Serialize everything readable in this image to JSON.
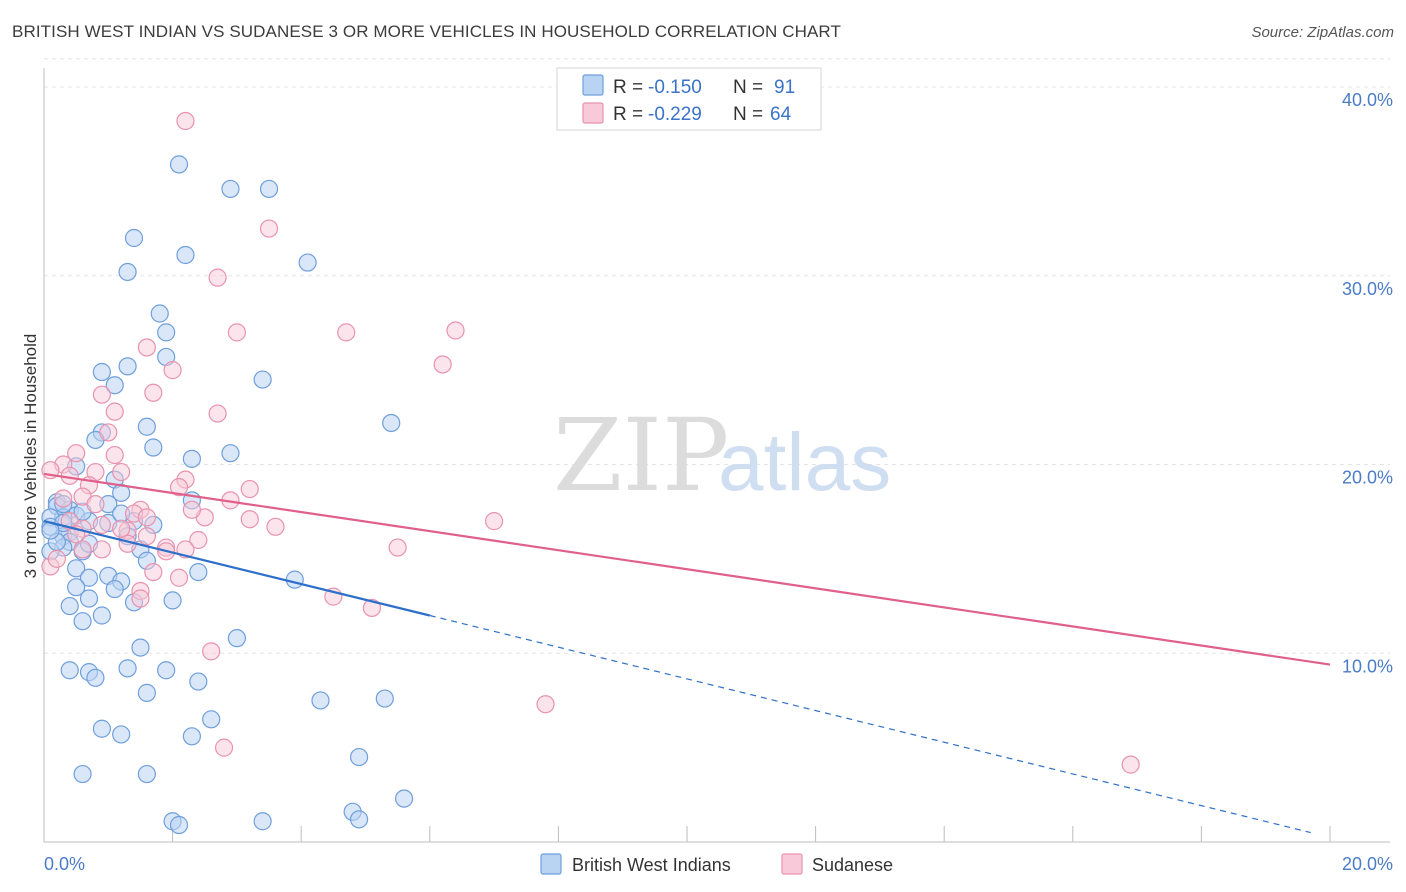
{
  "title": "BRITISH WEST INDIAN VS SUDANESE 3 OR MORE VEHICLES IN HOUSEHOLD CORRELATION CHART",
  "source": "Source: ZipAtlas.com",
  "watermark": {
    "zip": "ZIP",
    "atlas": "atlas"
  },
  "colors": {
    "blue_fill": "#b9d3f2",
    "blue_stroke": "#6f9fdc",
    "blue_line": "#2d6fc9",
    "pink_fill": "#f8c9d8",
    "pink_stroke": "#e893ae",
    "pink_line": "#e0608a",
    "grid": "#e4e4e4",
    "tick_label": "#4a7cc7"
  },
  "chart_data": {
    "type": "scatter",
    "ylabel": "3 or more Vehicles in Household",
    "xlim": [
      0,
      20
    ],
    "ylim": [
      0,
      40
    ],
    "x_tick_labels": [
      "0.0%",
      "20.0%"
    ],
    "y_ticks": [
      10,
      20,
      30,
      40
    ],
    "y_tick_labels": [
      "10.0%",
      "20.0%",
      "30.0%",
      "40.0%"
    ],
    "legend": [
      {
        "r_label": "R =",
        "r_value": "-0.150",
        "n_label": "N =",
        "n_value": "91"
      },
      {
        "r_label": "R =",
        "r_value": "-0.229",
        "n_label": "N =",
        "n_value": "64"
      }
    ],
    "series": [
      {
        "name": "British West Indians",
        "trend": {
          "x0": 0.0,
          "y0": 17.0,
          "x_solid_end": 6.0,
          "y_solid_end": 12.0,
          "x_dash_end": 19.7,
          "y_dash_end": 0.5
        },
        "points": [
          [
            2.1,
            35.9
          ],
          [
            2.9,
            34.6
          ],
          [
            3.5,
            34.6
          ],
          [
            1.4,
            32.0
          ],
          [
            2.2,
            31.1
          ],
          [
            4.1,
            30.7
          ],
          [
            1.3,
            30.2
          ],
          [
            1.8,
            28.0
          ],
          [
            1.9,
            27.0
          ],
          [
            1.9,
            25.7
          ],
          [
            3.4,
            24.5
          ],
          [
            1.3,
            25.2
          ],
          [
            0.9,
            24.9
          ],
          [
            1.1,
            24.2
          ],
          [
            5.4,
            22.2
          ],
          [
            1.6,
            22.0
          ],
          [
            0.9,
            21.7
          ],
          [
            0.8,
            21.3
          ],
          [
            1.7,
            20.9
          ],
          [
            2.9,
            20.6
          ],
          [
            2.3,
            20.3
          ],
          [
            0.5,
            19.9
          ],
          [
            1.1,
            19.2
          ],
          [
            1.2,
            18.5
          ],
          [
            2.3,
            18.1
          ],
          [
            1.0,
            17.9
          ],
          [
            0.2,
            18.0
          ],
          [
            0.2,
            17.8
          ],
          [
            0.4,
            17.6
          ],
          [
            0.5,
            17.3
          ],
          [
            0.7,
            17.0
          ],
          [
            0.3,
            17.2
          ],
          [
            0.1,
            17.2
          ],
          [
            1.4,
            17.0
          ],
          [
            1.7,
            16.8
          ],
          [
            0.1,
            16.7
          ],
          [
            0.4,
            16.4
          ],
          [
            1.0,
            16.9
          ],
          [
            0.3,
            16.2
          ],
          [
            1.3,
            16.2
          ],
          [
            0.4,
            15.9
          ],
          [
            0.3,
            15.6
          ],
          [
            0.1,
            15.4
          ],
          [
            0.6,
            15.4
          ],
          [
            1.5,
            15.5
          ],
          [
            1.6,
            14.9
          ],
          [
            2.4,
            14.3
          ],
          [
            0.5,
            14.5
          ],
          [
            0.7,
            14.0
          ],
          [
            1.0,
            14.1
          ],
          [
            1.2,
            13.8
          ],
          [
            1.1,
            13.4
          ],
          [
            0.5,
            13.5
          ],
          [
            3.9,
            13.9
          ],
          [
            2.0,
            12.8
          ],
          [
            1.4,
            12.7
          ],
          [
            0.7,
            12.9
          ],
          [
            0.4,
            12.5
          ],
          [
            0.9,
            12.0
          ],
          [
            0.6,
            11.7
          ],
          [
            3.0,
            10.8
          ],
          [
            1.5,
            10.3
          ],
          [
            0.4,
            9.1
          ],
          [
            0.7,
            9.0
          ],
          [
            1.3,
            9.2
          ],
          [
            1.9,
            9.1
          ],
          [
            0.8,
            8.7
          ],
          [
            2.4,
            8.5
          ],
          [
            1.6,
            7.9
          ],
          [
            4.3,
            7.5
          ],
          [
            5.3,
            7.6
          ],
          [
            2.6,
            6.5
          ],
          [
            0.9,
            6.0
          ],
          [
            1.2,
            5.7
          ],
          [
            2.3,
            5.6
          ],
          [
            4.9,
            4.5
          ],
          [
            0.6,
            3.6
          ],
          [
            1.6,
            3.6
          ],
          [
            5.6,
            2.3
          ],
          [
            4.8,
            1.6
          ],
          [
            2.0,
            1.1
          ],
          [
            2.1,
            0.9
          ],
          [
            3.4,
            1.1
          ],
          [
            4.9,
            1.2
          ],
          [
            0.2,
            15.9
          ],
          [
            0.6,
            17.5
          ],
          [
            0.3,
            16.9
          ],
          [
            0.7,
            15.8
          ],
          [
            1.2,
            17.4
          ],
          [
            0.1,
            16.5
          ],
          [
            0.3,
            17.9
          ]
        ]
      },
      {
        "name": "Sudanese",
        "trend": {
          "x0": 0.0,
          "y0": 19.5,
          "x1": 20.0,
          "y1": 9.4
        },
        "points": [
          [
            2.2,
            38.2
          ],
          [
            3.5,
            32.5
          ],
          [
            2.7,
            29.9
          ],
          [
            3.0,
            27.0
          ],
          [
            4.7,
            27.0
          ],
          [
            6.4,
            27.1
          ],
          [
            1.6,
            26.2
          ],
          [
            6.2,
            25.3
          ],
          [
            2.0,
            25.0
          ],
          [
            1.7,
            23.8
          ],
          [
            0.9,
            23.7
          ],
          [
            1.1,
            22.8
          ],
          [
            2.7,
            22.7
          ],
          [
            1.0,
            21.7
          ],
          [
            0.5,
            20.6
          ],
          [
            1.1,
            20.5
          ],
          [
            0.3,
            20.0
          ],
          [
            0.1,
            19.7
          ],
          [
            0.8,
            19.6
          ],
          [
            1.2,
            19.6
          ],
          [
            0.4,
            19.4
          ],
          [
            2.2,
            19.2
          ],
          [
            0.7,
            18.9
          ],
          [
            2.1,
            18.8
          ],
          [
            3.2,
            18.7
          ],
          [
            0.6,
            18.3
          ],
          [
            2.9,
            18.1
          ],
          [
            1.5,
            17.6
          ],
          [
            1.4,
            17.4
          ],
          [
            2.5,
            17.2
          ],
          [
            3.2,
            17.1
          ],
          [
            0.4,
            17.0
          ],
          [
            0.9,
            16.8
          ],
          [
            7.0,
            17.0
          ],
          [
            0.6,
            16.6
          ],
          [
            3.6,
            16.7
          ],
          [
            1.3,
            16.5
          ],
          [
            0.5,
            16.3
          ],
          [
            1.6,
            16.2
          ],
          [
            2.4,
            16.0
          ],
          [
            1.3,
            15.8
          ],
          [
            1.9,
            15.6
          ],
          [
            5.5,
            15.6
          ],
          [
            0.9,
            15.5
          ],
          [
            0.6,
            15.5
          ],
          [
            1.9,
            15.4
          ],
          [
            2.2,
            15.5
          ],
          [
            0.1,
            14.6
          ],
          [
            1.7,
            14.3
          ],
          [
            2.1,
            14.0
          ],
          [
            1.5,
            13.3
          ],
          [
            1.5,
            12.9
          ],
          [
            4.5,
            13.0
          ],
          [
            5.1,
            12.4
          ],
          [
            2.6,
            10.1
          ],
          [
            7.8,
            7.3
          ],
          [
            2.8,
            5.0
          ],
          [
            16.9,
            4.1
          ],
          [
            0.2,
            15.0
          ],
          [
            1.2,
            16.6
          ],
          [
            0.8,
            17.9
          ],
          [
            1.6,
            17.2
          ],
          [
            0.3,
            18.2
          ],
          [
            2.3,
            17.6
          ]
        ]
      }
    ]
  }
}
